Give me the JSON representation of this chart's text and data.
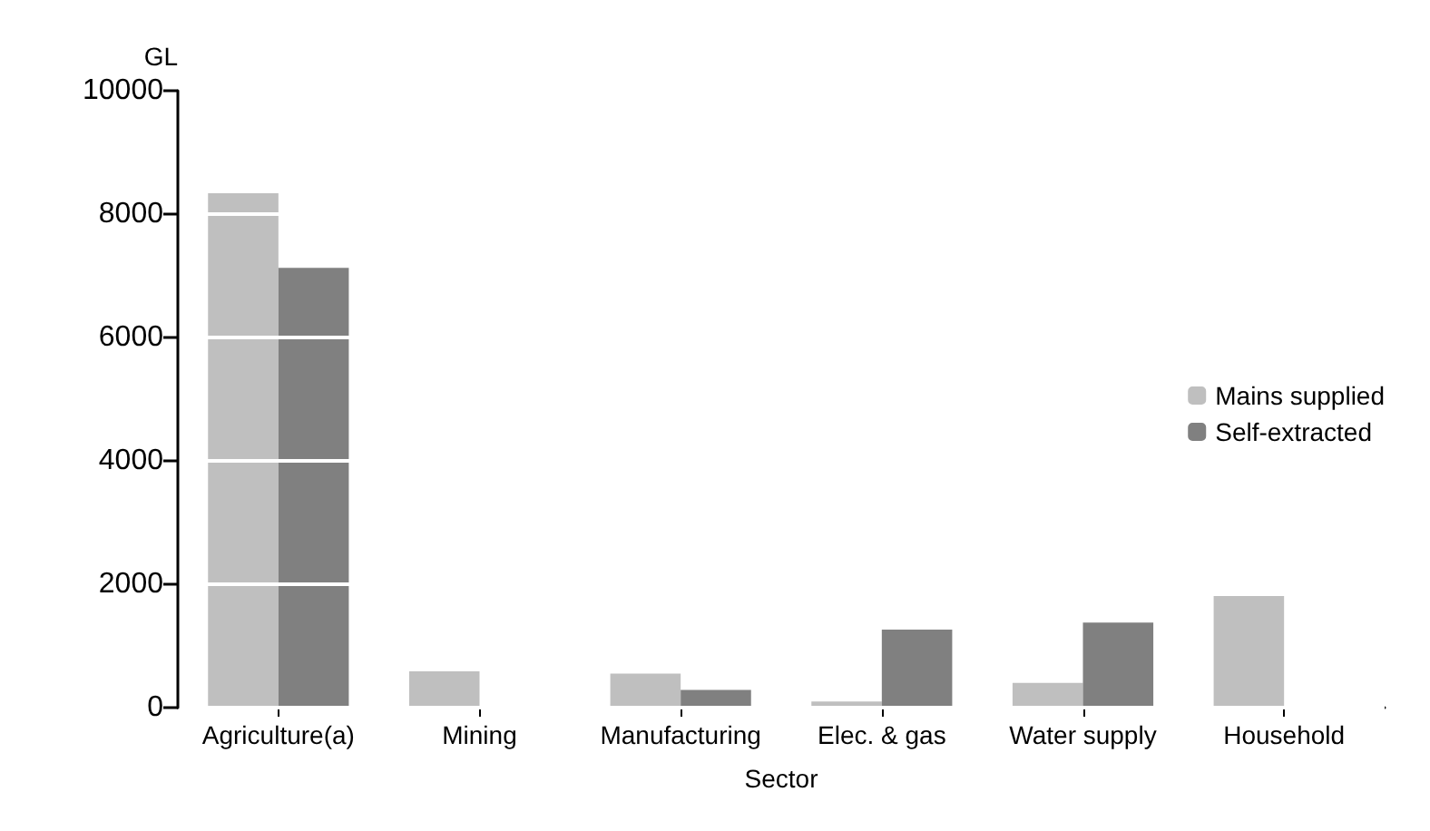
{
  "chart_data": {
    "type": "bar",
    "xlabel": "Sector",
    "ylabel": "GL",
    "categories": [
      "Agriculture(a)",
      "Mining",
      "Manufacturing",
      "Elec. & gas",
      "Water supply",
      "Household"
    ],
    "series": [
      {
        "name": "Mains supplied",
        "color": "#bfbfbf",
        "values": [
          8340,
          590,
          550,
          100,
          400,
          1810
        ]
      },
      {
        "name": "Self-extracted",
        "color": "#808080",
        "values": [
          7130,
          0,
          285,
          1265,
          1380,
          0
        ]
      }
    ],
    "ylim": [
      0,
      10000
    ],
    "yticks": [
      0,
      2000,
      4000,
      6000,
      8000,
      10000
    ],
    "grid": "y",
    "legend": "right"
  }
}
